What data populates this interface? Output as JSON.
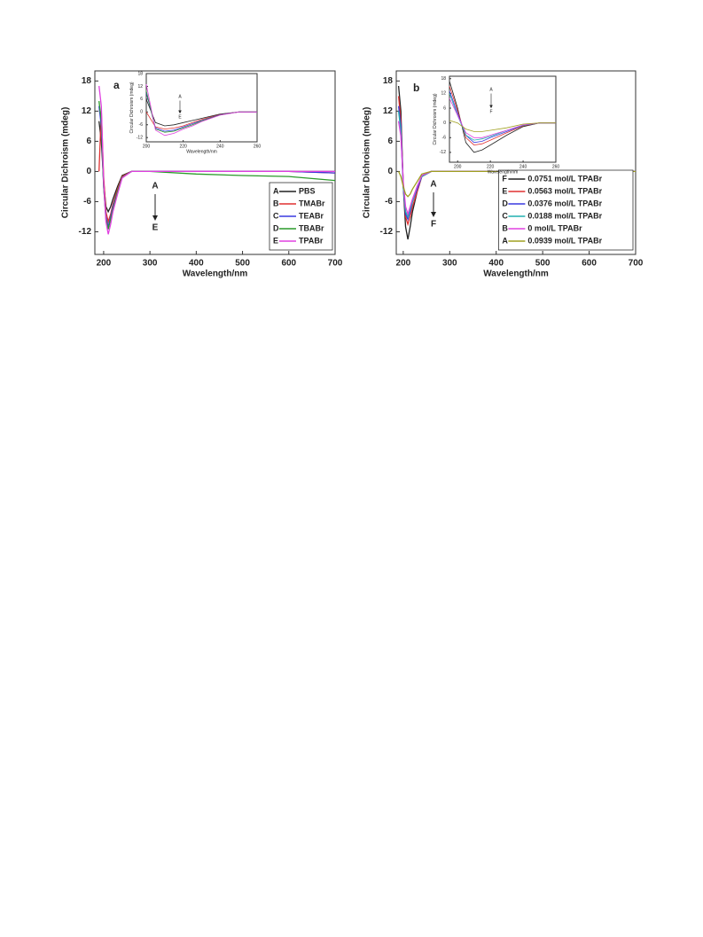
{
  "chart_data": [
    {
      "type": "line",
      "panel_label": "a",
      "y_label": "Circular Dichroism (mdeg)",
      "x_label": "Wavelength/nm",
      "xlim": [
        181,
        700
      ],
      "ylim": [
        -16.5,
        20
      ],
      "xticks": [
        200,
        300,
        400,
        500,
        600,
        700
      ],
      "yticks": [
        18,
        12,
        6,
        0,
        -6,
        -12
      ],
      "legend": "lower right",
      "annotations": [
        "A",
        "E"
      ],
      "x": [
        190,
        195,
        200,
        205,
        210,
        215,
        220,
        230,
        240,
        260,
        300,
        400,
        500,
        600,
        700
      ],
      "series": [
        {
          "key": "A",
          "name": "PBS",
          "color": "#222222",
          "values": [
            10,
            6,
            -2,
            -7,
            -8,
            -7,
            -5.5,
            -3,
            -0.8,
            0,
            0,
            0,
            0,
            0,
            0
          ]
        },
        {
          "key": "B",
          "name": "TMABr",
          "color": "#e03030",
          "values": [
            0,
            12,
            -1,
            -8,
            -10,
            -8.5,
            -6.5,
            -3.5,
            -1,
            0,
            0,
            0,
            0,
            0,
            -0.3
          ]
        },
        {
          "key": "C",
          "name": "TEABr",
          "color": "#3a3ae0",
          "values": [
            13,
            9,
            -3,
            -9,
            -11,
            -9,
            -7,
            -4,
            -1.2,
            0,
            0,
            0,
            0,
            0,
            -0.3
          ]
        },
        {
          "key": "D",
          "name": "TBABr",
          "color": "#2a9a2a",
          "values": [
            14,
            10,
            -3,
            -9.5,
            -11.5,
            -9.5,
            -7.5,
            -4,
            -1.2,
            0,
            0,
            -0.5,
            -0.8,
            -1,
            -1.8
          ]
        },
        {
          "key": "E",
          "name": "TPABr",
          "color": "#e040e0",
          "values": [
            17,
            13,
            -2,
            -10,
            -12.5,
            -10.5,
            -8,
            -4.5,
            -1.3,
            0,
            0,
            0,
            0,
            0,
            0
          ]
        }
      ]
    },
    {
      "type": "line",
      "y_label": "Circular Dichroism (mdeg)",
      "x_label": "Wavelength/nm",
      "xlim": [
        200,
        260
      ],
      "ylim": [
        -14,
        18
      ],
      "xticks": [
        200,
        220,
        240,
        260
      ],
      "yticks": [
        18,
        12,
        6,
        0,
        -6,
        -12
      ],
      "annotations": [
        "A",
        "E"
      ],
      "x": [
        200,
        205,
        210,
        215,
        220,
        225,
        230,
        240,
        250,
        260
      ],
      "series": [
        {
          "color": "#222222",
          "values": [
            6,
            -5,
            -6.5,
            -6,
            -5,
            -4,
            -3,
            -1,
            0,
            0
          ]
        },
        {
          "color": "#e03030",
          "values": [
            0,
            -7,
            -8,
            -7.5,
            -6.5,
            -5,
            -3.5,
            -1.2,
            0,
            0
          ]
        },
        {
          "color": "#3a3ae0",
          "values": [
            9,
            -7.5,
            -9,
            -8.5,
            -7,
            -5.5,
            -4,
            -1.3,
            0,
            0
          ]
        },
        {
          "color": "#2a9a2a",
          "values": [
            10,
            -8,
            -9.5,
            -9,
            -7.5,
            -6,
            -4.2,
            -1.4,
            0,
            0
          ]
        },
        {
          "color": "#e040e0",
          "values": [
            13,
            -8.5,
            -11,
            -10,
            -8,
            -6.5,
            -4.5,
            -1.5,
            0,
            0
          ]
        }
      ]
    },
    {
      "type": "line",
      "panel_label": "b",
      "y_label": "Circular Dichroism (mdeg)",
      "x_label": "Wavelength/nm",
      "xlim": [
        185,
        700
      ],
      "ylim": [
        -16.5,
        20
      ],
      "xticks": [
        200,
        300,
        400,
        500,
        600,
        700
      ],
      "yticks": [
        18,
        12,
        6,
        0,
        -6,
        -12
      ],
      "legend": "lower right",
      "annotations": [
        "A",
        "F"
      ],
      "x": [
        190,
        195,
        200,
        205,
        210,
        215,
        220,
        230,
        240,
        260,
        300,
        400,
        500,
        600,
        700
      ],
      "series": [
        {
          "key": "F",
          "name": "0.0751 mol/L TPABr",
          "color": "#222222",
          "values": [
            17,
            12,
            -3,
            -11,
            -13.5,
            -11,
            -8,
            -4,
            -1,
            0,
            0,
            0,
            0,
            0,
            0
          ]
        },
        {
          "key": "E",
          "name": "0.0563 mol/L TPABr",
          "color": "#e03030",
          "values": [
            15,
            10,
            -3,
            -9,
            -10.5,
            -9,
            -7,
            -4,
            -1,
            0,
            0,
            0,
            0,
            0,
            0
          ]
        },
        {
          "key": "D",
          "name": "0.0376 mol/L TPABr",
          "color": "#3a3ae0",
          "values": [
            13,
            9,
            -3,
            -8.5,
            -9.5,
            -8,
            -6,
            -3.5,
            -1,
            0,
            0,
            0,
            0,
            0,
            0
          ]
        },
        {
          "key": "C",
          "name": "0.0188 mol/L TPABr",
          "color": "#20b0b0",
          "values": [
            12,
            8,
            -3,
            -8,
            -9,
            -7.5,
            -6,
            -3,
            -1,
            0,
            0,
            0,
            0,
            0,
            0
          ]
        },
        {
          "key": "B",
          "name": "0 mol/L TPABr",
          "color": "#e040e0",
          "values": [
            10,
            7,
            -2,
            -7,
            -8.5,
            -7,
            -5.5,
            -3,
            -0.8,
            0,
            0,
            0,
            0,
            0,
            0
          ]
        },
        {
          "key": "A",
          "name": "0.0939 mol/L TPABr",
          "color": "#a0a020",
          "values": [
            0,
            -1,
            -3,
            -4.5,
            -5,
            -4.5,
            -3.5,
            -2,
            -0.5,
            0,
            0,
            0,
            0,
            0,
            0
          ]
        }
      ]
    },
    {
      "type": "line",
      "y_label": "Circular Dichroism (mdeg)",
      "x_label": "Wavelength/nm",
      "xlim": [
        195,
        260
      ],
      "ylim": [
        -16,
        19
      ],
      "xticks": [
        200,
        220,
        240,
        260
      ],
      "yticks": [
        18,
        12,
        6,
        0,
        -6,
        -12
      ],
      "annotations": [
        "A",
        "F"
      ],
      "x": [
        195,
        200,
        205,
        210,
        215,
        220,
        230,
        240,
        250,
        260
      ],
      "series": [
        {
          "color": "#222222",
          "values": [
            17,
            6,
            -8,
            -12,
            -11,
            -9,
            -5,
            -1.5,
            0,
            0
          ]
        },
        {
          "color": "#e03030",
          "values": [
            15,
            5,
            -6,
            -9,
            -8.5,
            -7,
            -4,
            -1.2,
            0,
            0
          ]
        },
        {
          "color": "#3a3ae0",
          "values": [
            13,
            4,
            -5,
            -8,
            -7.5,
            -6,
            -3.5,
            -1,
            0,
            0
          ]
        },
        {
          "color": "#20b0b0",
          "values": [
            12,
            3,
            -5,
            -7,
            -6.5,
            -5.5,
            -3,
            -1,
            0,
            0
          ]
        },
        {
          "color": "#e040e0",
          "values": [
            10,
            3,
            -4,
            -6,
            -6,
            -5,
            -3,
            -0.8,
            0,
            0
          ]
        },
        {
          "color": "#a0a020",
          "values": [
            1,
            0,
            -2.5,
            -3.5,
            -3.5,
            -3,
            -2,
            -0.5,
            0,
            0
          ]
        }
      ]
    }
  ]
}
